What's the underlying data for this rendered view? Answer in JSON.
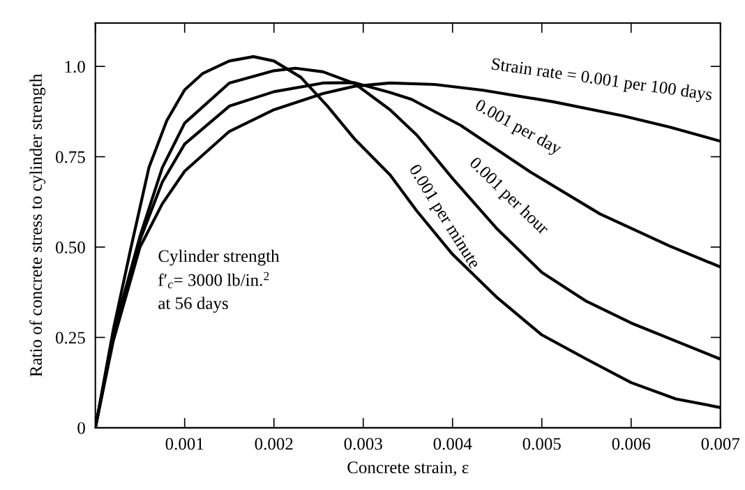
{
  "chart_data": {
    "type": "line",
    "xlabel": "Concrete strain, ε",
    "ylabel": "Ratio of concrete stress to cylinder strength",
    "xlim": [
      0,
      0.007
    ],
    "ylim": [
      0,
      1.12
    ],
    "xticks": [
      {
        "value": 0,
        "label": null
      },
      0.001,
      0.002,
      0.003,
      0.004,
      0.005,
      0.006,
      0.007
    ],
    "yticks": [
      0,
      0.25,
      {
        "value": 0.5,
        "label": "0.50"
      },
      0.75,
      {
        "value": 1,
        "label": "1.0"
      }
    ],
    "grid": false,
    "legend": false,
    "marker": "none",
    "line_style": "solid",
    "annotations": [
      "Cylinder strength\nf′$_{c}$= 3000 lb/in.$^{2}$\nat 56 days"
    ],
    "series": [
      {
        "name": "Strain rate = 0.001 per 100 days",
        "color": "#000000",
        "x": [
          0,
          0.0002,
          0.0005,
          0.00075,
          0.001,
          0.0015,
          0.002,
          0.00255,
          0.0029,
          0.0033,
          0.0038,
          0.00434,
          0.00513,
          0.00591,
          0.00643,
          0.007
        ],
        "values": [
          0,
          0.24,
          0.5,
          0.62,
          0.71,
          0.82,
          0.88,
          0.925,
          0.945,
          0.954,
          0.95,
          0.934,
          0.902,
          0.863,
          0.832,
          0.793
        ]
      },
      {
        "name": "0.001 per day",
        "color": "#000000",
        "x": [
          0,
          0.0002,
          0.0005,
          0.00075,
          0.001,
          0.0015,
          0.002,
          0.00255,
          0.0029,
          0.0033,
          0.00354,
          0.00409,
          0.00487,
          0.00565,
          0.00643,
          0.007
        ],
        "values": [
          0,
          0.25,
          0.52,
          0.68,
          0.785,
          0.89,
          0.93,
          0.954,
          0.955,
          0.928,
          0.909,
          0.837,
          0.708,
          0.592,
          0.503,
          0.445
        ]
      },
      {
        "name": "0.001 per hour",
        "color": "#000000",
        "x": [
          0,
          0.0002,
          0.0005,
          0.00075,
          0.001,
          0.0015,
          0.002,
          0.00224,
          0.00255,
          0.0029,
          0.0033,
          0.0036,
          0.004,
          0.0045,
          0.005,
          0.0055,
          0.006,
          0.0065,
          0.007
        ],
        "values": [
          0,
          0.26,
          0.53,
          0.72,
          0.843,
          0.954,
          0.988,
          0.995,
          0.985,
          0.953,
          0.88,
          0.81,
          0.69,
          0.55,
          0.43,
          0.35,
          0.29,
          0.24,
          0.19
        ]
      },
      {
        "name": "0.001 per minute",
        "color": "#000000",
        "x": [
          0,
          0.0002,
          0.0004,
          0.0006,
          0.0008,
          0.001,
          0.0012,
          0.0015,
          0.00177,
          0.002,
          0.0023,
          0.0026,
          0.0029,
          0.0033,
          0.0036,
          0.004,
          0.0045,
          0.005,
          0.0055,
          0.006,
          0.0065,
          0.007
        ],
        "values": [
          0,
          0.27,
          0.5,
          0.72,
          0.85,
          0.935,
          0.98,
          1.015,
          1.027,
          1.015,
          0.97,
          0.89,
          0.8,
          0.7,
          0.6,
          0.48,
          0.36,
          0.257,
          0.19,
          0.125,
          0.08,
          0.056
        ]
      }
    ]
  }
}
